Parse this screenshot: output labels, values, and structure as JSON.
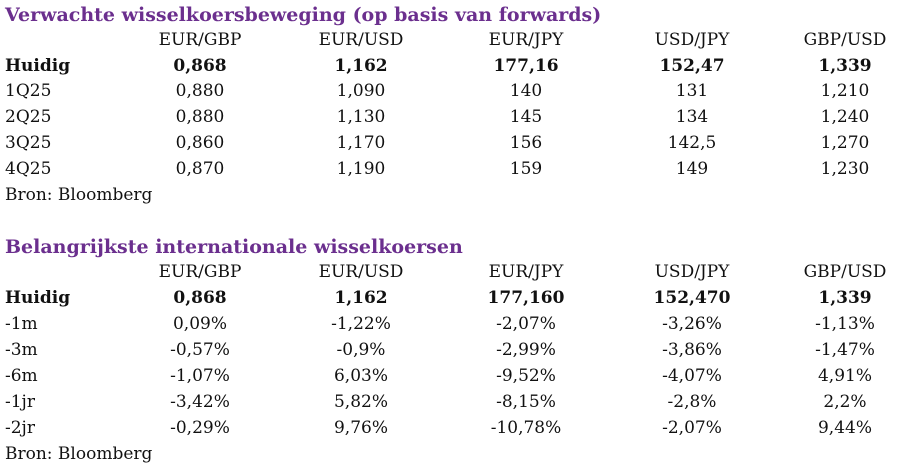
{
  "table1": {
    "title": "Verwachte wisselkoersbeweging (op basis van forwards)",
    "headers": [
      "EUR/GBP",
      "EUR/USD",
      "EUR/JPY",
      "USD/JPY",
      "GBP/USD"
    ],
    "rows": [
      {
        "label": "Huidig",
        "cells": [
          "0,868",
          "1,162",
          "177,16",
          "152,47",
          "1,339"
        ]
      },
      {
        "label": "1Q25",
        "cells": [
          "0,880",
          "1,090",
          "140",
          "131",
          "1,210"
        ]
      },
      {
        "label": "2Q25",
        "cells": [
          "0,880",
          "1,130",
          "145",
          "134",
          "1,240"
        ]
      },
      {
        "label": "3Q25",
        "cells": [
          "0,860",
          "1,170",
          "156",
          "142,5",
          "1,270"
        ]
      },
      {
        "label": "4Q25",
        "cells": [
          "0,870",
          "1,190",
          "159",
          "149",
          "1,230"
        ]
      }
    ],
    "source": "Bron: Bloomberg"
  },
  "table2": {
    "title": "Belangrijkste internationale wisselkoersen",
    "headers": [
      "EUR/GBP",
      "EUR/USD",
      "EUR/JPY",
      "USD/JPY",
      "GBP/USD"
    ],
    "rows": [
      {
        "label": "Huidig",
        "cells": [
          "0,868",
          "1,162",
          "177,160",
          "152,470",
          "1,339"
        ]
      },
      {
        "label": "-1m",
        "cells": [
          "0,09%",
          "-1,22%",
          "-2,07%",
          "-3,26%",
          "-1,13%"
        ]
      },
      {
        "label": "-3m",
        "cells": [
          "-0,57%",
          "-0,9%",
          "-2,99%",
          "-3,86%",
          "-1,47%"
        ]
      },
      {
        "label": "-6m",
        "cells": [
          "-1,07%",
          "6,03%",
          "-9,52%",
          "-4,07%",
          "4,91%"
        ]
      },
      {
        "label": "-1jr",
        "cells": [
          "-3,42%",
          "5,82%",
          "-8,15%",
          "-2,8%",
          "2,2%"
        ]
      },
      {
        "label": "-2jr",
        "cells": [
          "-0,29%",
          "9,76%",
          "-10,78%",
          "-2,07%",
          "9,44%"
        ]
      }
    ],
    "source": "Bron: Bloomberg"
  },
  "colors": {
    "title": "#6b2f8e",
    "text": "#111111"
  }
}
